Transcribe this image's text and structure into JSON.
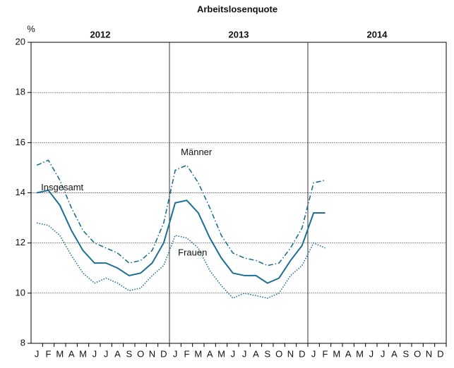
{
  "chart_data": {
    "type": "line",
    "title": "Arbeitslosenquote",
    "y_unit": "%",
    "years": [
      "2012",
      "2013",
      "2014"
    ],
    "categories": [
      "J",
      "F",
      "M",
      "A",
      "M",
      "J",
      "J",
      "A",
      "S",
      "O",
      "N",
      "D",
      "J",
      "F",
      "M",
      "A",
      "M",
      "J",
      "J",
      "A",
      "S",
      "O",
      "N",
      "D",
      "J",
      "F",
      "M",
      "A",
      "M",
      "J",
      "J",
      "A",
      "S",
      "O",
      "N",
      "D"
    ],
    "series": [
      {
        "name": "Männer",
        "color": "#1b6f93",
        "dash": "dashdot",
        "values": [
          15.1,
          15.3,
          14.5,
          13.4,
          12.5,
          12.0,
          11.8,
          11.6,
          11.2,
          11.3,
          11.7,
          12.8,
          14.9,
          15.1,
          14.4,
          13.4,
          12.3,
          11.6,
          11.4,
          11.3,
          11.1,
          11.2,
          11.8,
          12.6,
          14.4,
          14.5,
          null,
          null,
          null,
          null,
          null,
          null,
          null,
          null,
          null,
          null
        ]
      },
      {
        "name": "Insgesamt",
        "color": "#1b6f93",
        "dash": "solid",
        "values": [
          14.0,
          14.1,
          13.5,
          12.5,
          11.7,
          11.2,
          11.2,
          11.0,
          10.7,
          10.8,
          11.2,
          12.0,
          13.6,
          13.7,
          13.2,
          12.2,
          11.4,
          10.8,
          10.7,
          10.7,
          10.4,
          10.6,
          11.3,
          11.9,
          13.2,
          13.2,
          null,
          null,
          null,
          null,
          null,
          null,
          null,
          null,
          null,
          null
        ]
      },
      {
        "name": "Frauen",
        "color": "#1b6f93",
        "dash": "dotted",
        "values": [
          12.8,
          12.7,
          12.3,
          11.5,
          10.8,
          10.4,
          10.6,
          10.4,
          10.1,
          10.2,
          10.7,
          11.1,
          12.3,
          12.2,
          11.8,
          10.9,
          10.3,
          9.8,
          10.0,
          9.9,
          9.8,
          10.0,
          10.7,
          11.1,
          12.0,
          11.8,
          null,
          null,
          null,
          null,
          null,
          null,
          null,
          null,
          null,
          null
        ]
      }
    ],
    "ylim": [
      8,
      20
    ],
    "yticks": [
      8,
      10,
      12,
      14,
      16,
      18,
      20
    ],
    "grid": true
  }
}
